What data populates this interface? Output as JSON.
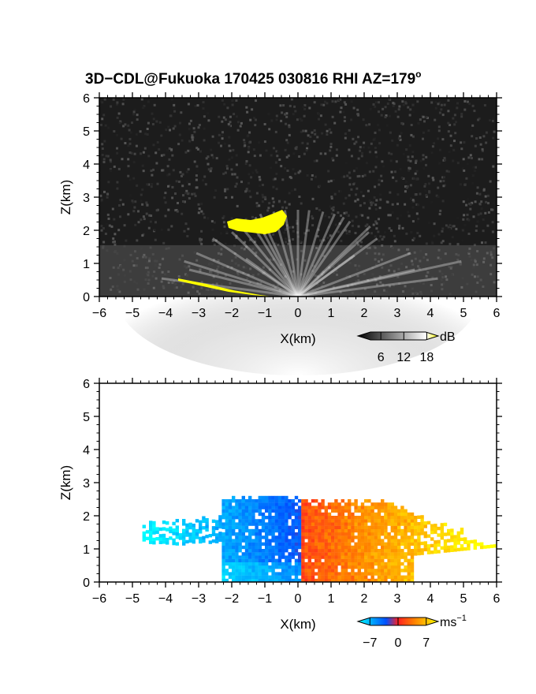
{
  "figure": {
    "title": "3D−CDL@Fukuoka 170425 030816 RHI AZ=179",
    "title_degree": "o"
  },
  "chart_data": [
    {
      "type": "heatmap",
      "name": "reflectivity-panel",
      "xlabel": "X(km)",
      "ylabel": "Z(km)",
      "xlim": [
        -6,
        6
      ],
      "ylim": [
        0,
        6
      ],
      "xticks": [
        "−6",
        "−5",
        "−4",
        "−3",
        "−2",
        "−1",
        "0",
        "1",
        "2",
        "3",
        "4",
        "5",
        "6"
      ],
      "yticks": [
        "0",
        "1",
        "2",
        "3",
        "4",
        "5",
        "6"
      ],
      "colorbar": {
        "unit": "dB",
        "ticks": [
          "6",
          "12",
          "18"
        ],
        "tick_values": [
          6,
          12,
          18
        ],
        "range": [
          0,
          21
        ],
        "colors": [
          "#000000",
          "#ffffff",
          "#ffff00"
        ]
      },
      "features": {
        "cloud_top_km": 2.3,
        "cloud_x_range_km": [
          -2.2,
          -0.4
        ],
        "fan_x_range_km": [
          -4,
          4
        ],
        "fan_top_km": 2.5,
        "ground_clutter_line": [
          [
            -3.6,
            0.5
          ],
          [
            -2.0,
            0.25
          ],
          [
            -1.0,
            0.05
          ]
        ]
      }
    },
    {
      "type": "heatmap",
      "name": "doppler-velocity-panel",
      "xlabel": "X(km)",
      "ylabel": "Z(km)",
      "xlim": [
        -6,
        6
      ],
      "ylim": [
        0,
        6
      ],
      "xticks": [
        "−6",
        "−5",
        "−4",
        "−3",
        "−2",
        "−1",
        "0",
        "1",
        "2",
        "3",
        "4",
        "5",
        "6"
      ],
      "yticks": [
        "0",
        "1",
        "2",
        "3",
        "4",
        "5",
        "6"
      ],
      "colorbar": {
        "unit": "ms",
        "unit_exponent": "−1",
        "ticks": [
          "−7",
          "0",
          "7"
        ],
        "tick_values": [
          -7,
          0,
          7
        ],
        "range": [
          -10,
          10
        ],
        "colors": [
          "#00ffff",
          "#0050ff",
          "#ff2020",
          "#ff8000",
          "#ffff00"
        ]
      },
      "features": {
        "negative_region_x_km": [
          -4.8,
          0
        ],
        "positive_region_x_km": [
          0,
          6
        ],
        "echo_top_km": 2.5
      }
    }
  ]
}
